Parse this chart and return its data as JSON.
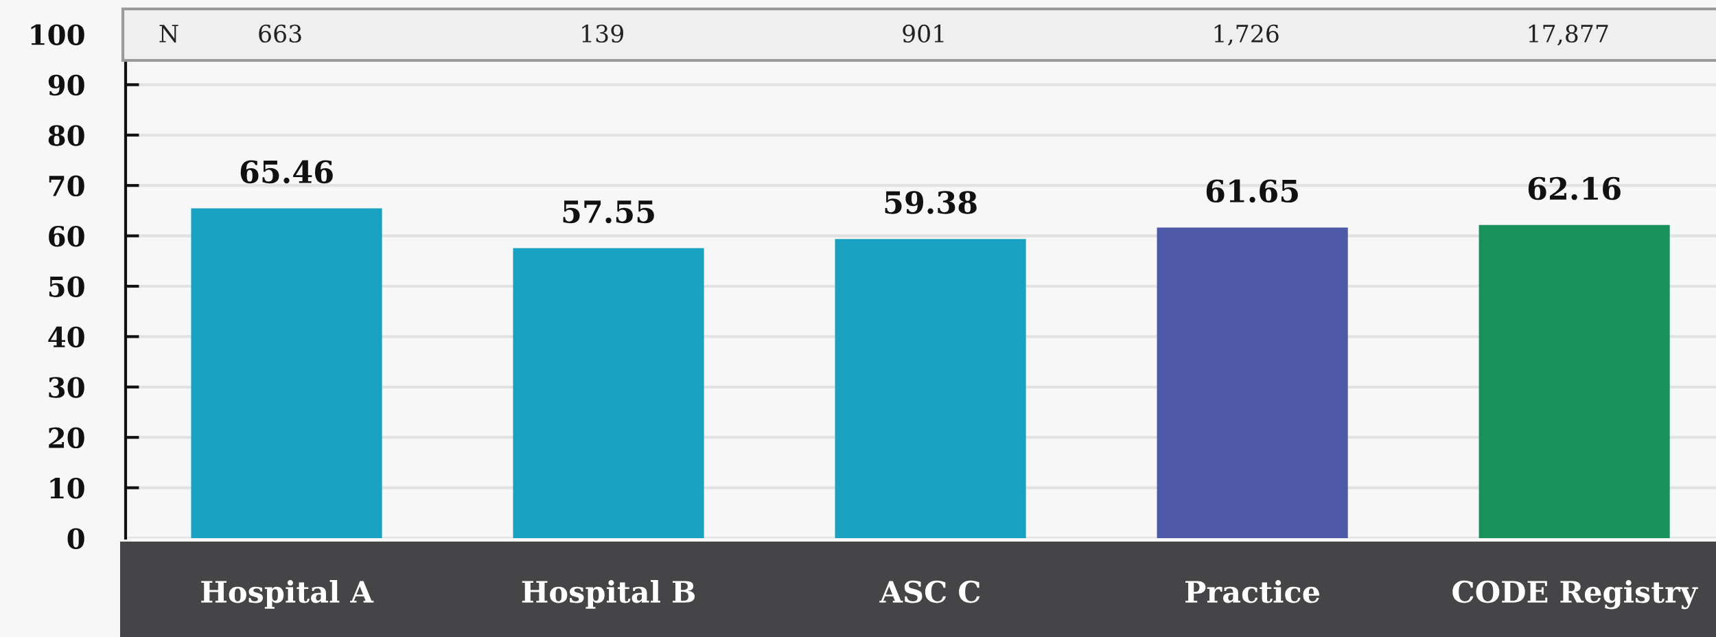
{
  "chart_data": {
    "type": "bar",
    "categories": [
      "Hospital A",
      "Hospital B",
      "ASC C",
      "Practice",
      "CODE Registry"
    ],
    "values": [
      65.46,
      57.55,
      59.38,
      61.65,
      62.16
    ],
    "colors": [
      "#18a1c0",
      "#18a1c0",
      "#18a1c0",
      "#4d59a7",
      "#19915b"
    ],
    "ylim": [
      0,
      100
    ],
    "yticks": [
      0,
      10,
      20,
      30,
      40,
      50,
      60,
      70,
      80,
      90,
      100
    ],
    "grid": "y",
    "data_labels": true,
    "annotations": [
      "N",
      "663",
      "139",
      "901",
      "1,726",
      "17,877"
    ]
  }
}
